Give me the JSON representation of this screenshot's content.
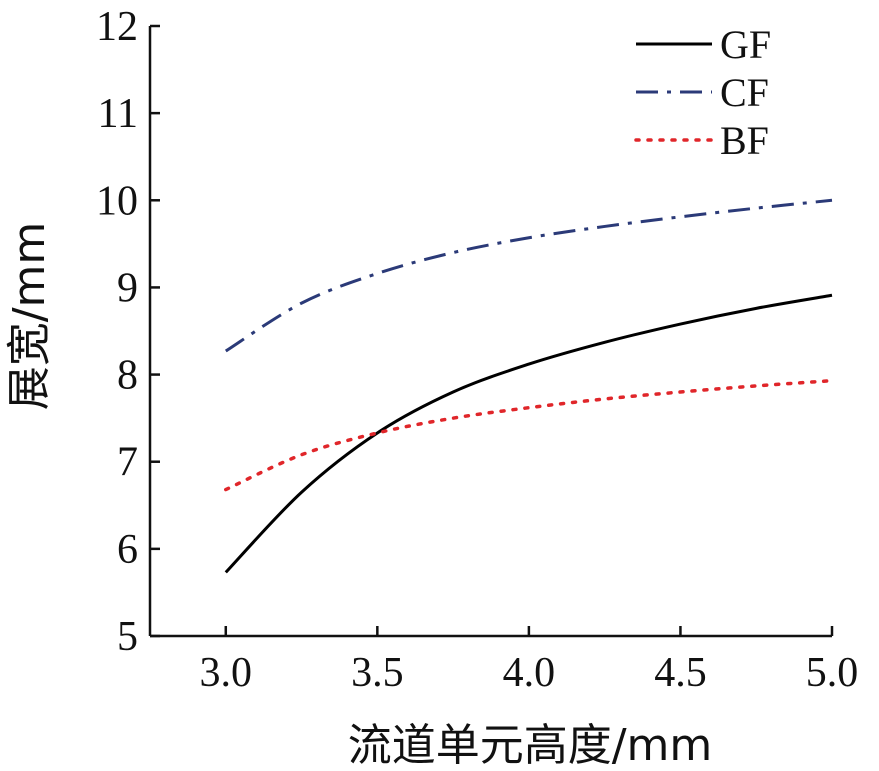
{
  "chart_data": {
    "type": "line",
    "xlabel": "流道单元高度/mm",
    "ylabel": "展宽/mm",
    "xlim": [
      2.75,
      5.0
    ],
    "ylim": [
      5,
      12
    ],
    "xticks": [
      3.0,
      3.5,
      4.0,
      4.5,
      5.0
    ],
    "xtick_labels": [
      "3.0",
      "3.5",
      "4.0",
      "4.5",
      "5.0"
    ],
    "yticks": [
      5,
      6,
      7,
      8,
      9,
      10,
      11,
      12
    ],
    "ytick_labels": [
      "5",
      "6",
      "7",
      "8",
      "9",
      "10",
      "11",
      "12"
    ],
    "grid": false,
    "legend": "top-right",
    "series": [
      {
        "name": "GF",
        "color": "#000000",
        "style": "solid",
        "x": [
          3.0,
          3.25,
          3.5,
          3.75,
          4.0,
          4.25,
          4.5,
          4.75,
          5.0
        ],
        "y": [
          5.73,
          6.65,
          7.33,
          7.8,
          8.12,
          8.37,
          8.58,
          8.76,
          8.91
        ]
      },
      {
        "name": "CF",
        "color": "#2b3a78",
        "style": "dashdot",
        "x": [
          3.0,
          3.25,
          3.5,
          3.75,
          4.0,
          4.25,
          4.5,
          4.75,
          5.0
        ],
        "y": [
          8.27,
          8.82,
          9.16,
          9.4,
          9.57,
          9.7,
          9.81,
          9.91,
          10.0
        ]
      },
      {
        "name": "BF",
        "color": "#e0262a",
        "style": "dotted",
        "x": [
          3.0,
          3.25,
          3.5,
          3.75,
          4.0,
          4.25,
          4.5,
          4.75,
          5.0
        ],
        "y": [
          6.68,
          7.08,
          7.33,
          7.5,
          7.62,
          7.72,
          7.8,
          7.87,
          7.93
        ]
      }
    ]
  }
}
